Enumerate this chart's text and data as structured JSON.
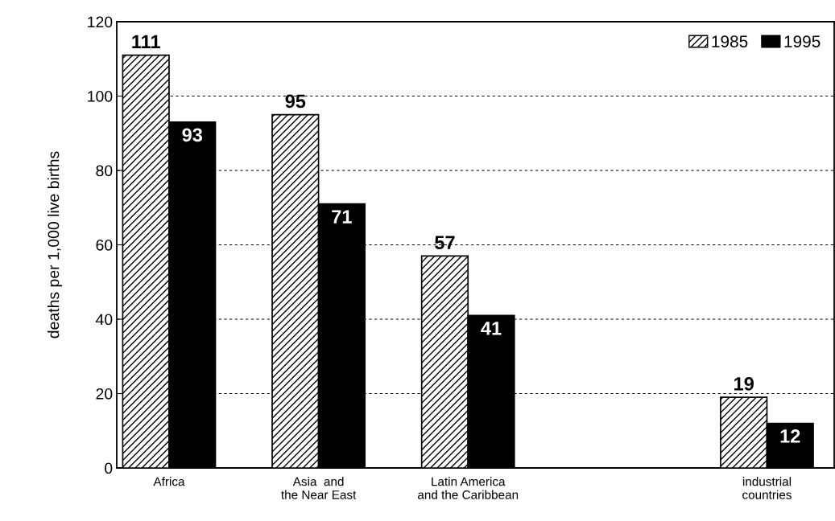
{
  "chart_data": {
    "type": "bar",
    "ylabel": "deaths per 1,000 live births",
    "categories": [
      "Africa",
      "Asia  and\nthe Near East",
      "Latin America\nand the Caribbean",
      null,
      "industrial\ncountries"
    ],
    "series": [
      {
        "name": "1985",
        "color": "#000000",
        "values": [
          111,
          95,
          57,
          null,
          19
        ]
      },
      {
        "name": "1995",
        "color": "#000000",
        "values": [
          93,
          71,
          41,
          null,
          12
        ]
      }
    ],
    "ylim": [
      0,
      120
    ],
    "yticks": [
      0,
      20,
      40,
      60,
      80,
      100,
      120
    ],
    "grid": "y",
    "legend": "top right",
    "data_labels": true
  }
}
